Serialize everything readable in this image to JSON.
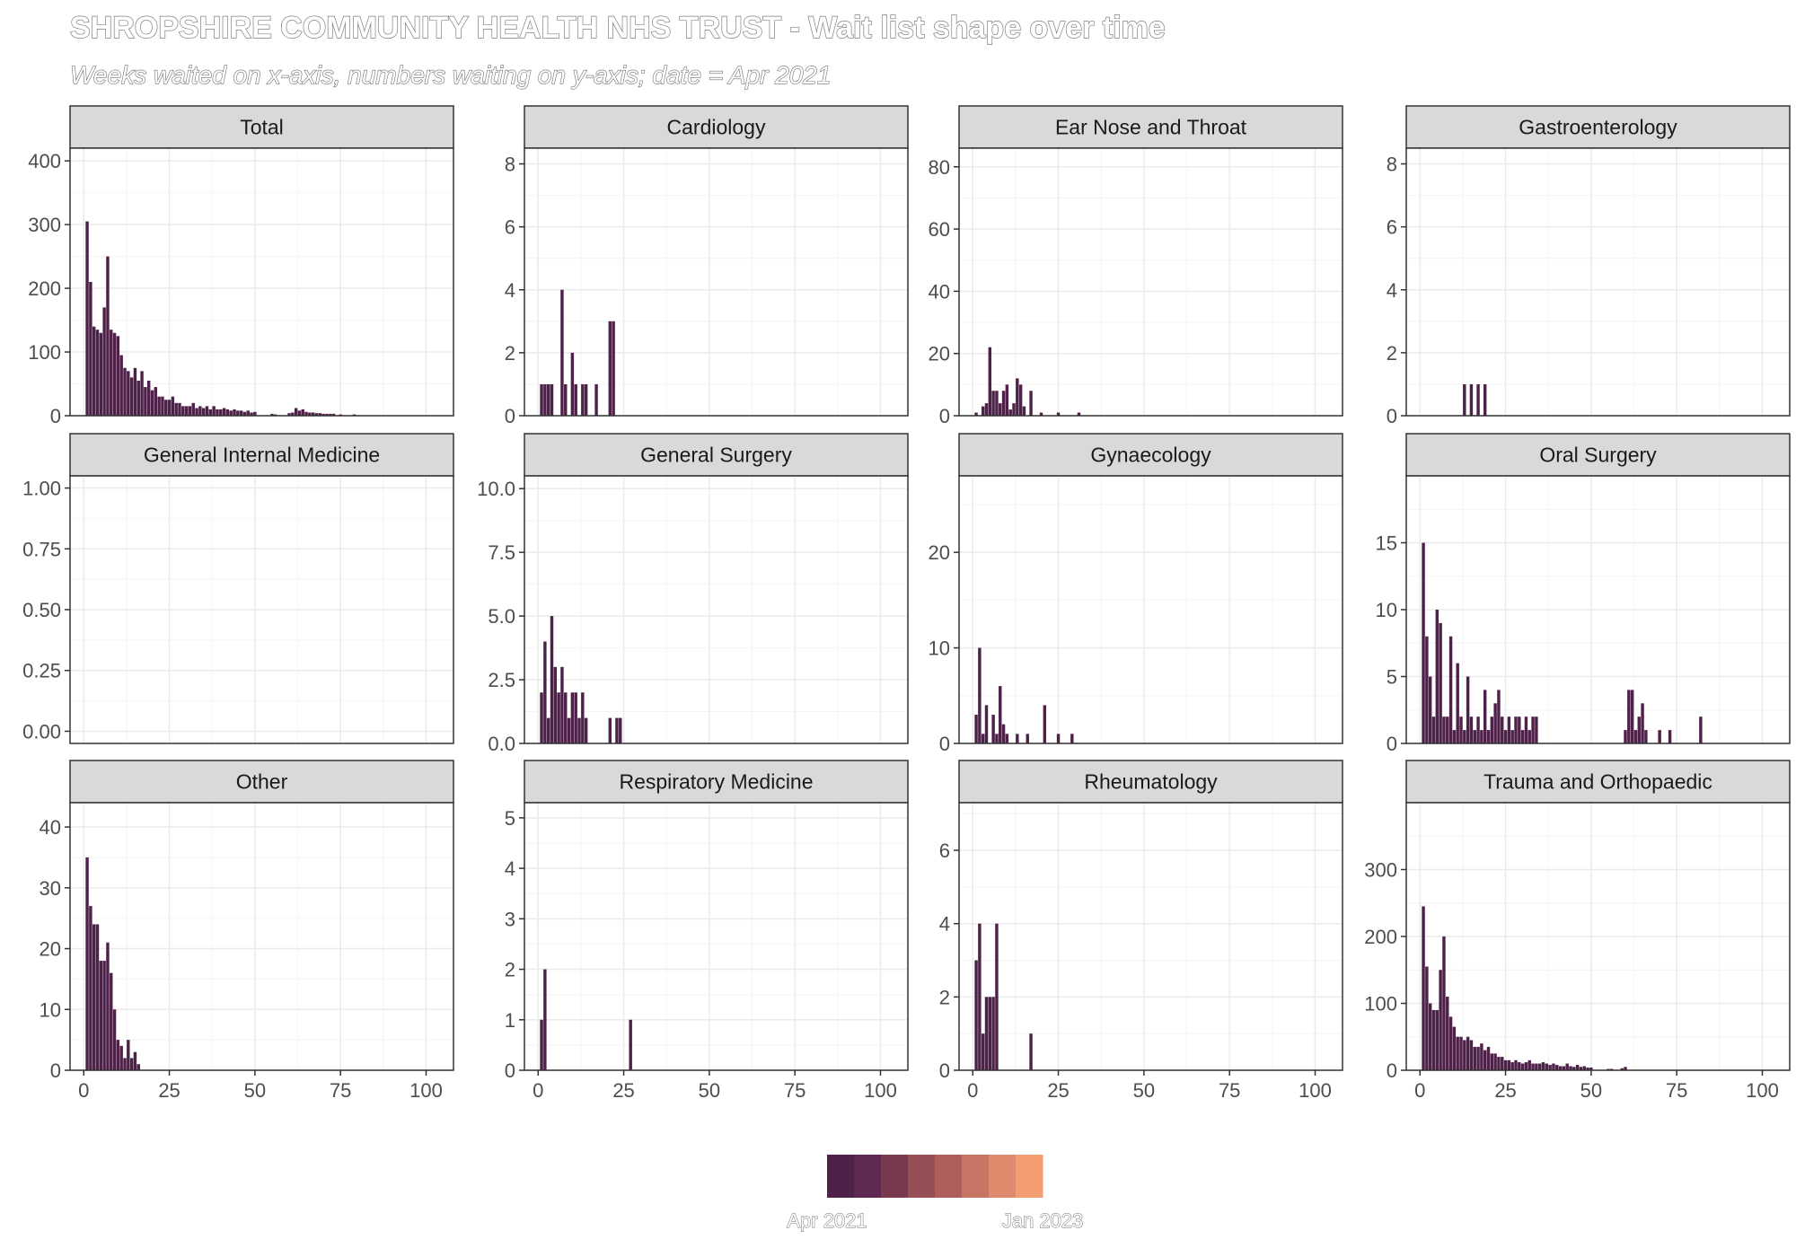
{
  "title": "SHROPSHIRE COMMUNITY HEALTH NHS TRUST - Wait list shape over time",
  "subtitle": "Weeks waited on x-axis, numbers waiting on y-axis; date = Apr 2021",
  "colors": {
    "bar": "#4e2149",
    "strip_fill": "#d9d9d9",
    "panel_border": "#333333",
    "grid_major": "#ebebeb",
    "grid_minor": "#f4f4f4",
    "legend_ramp": [
      "#4e2149",
      "#5e2a52",
      "#79394f",
      "#964f55",
      "#ae5f5c",
      "#c77565",
      "#dd8b6c",
      "#f29e72"
    ]
  },
  "legend": {
    "labels": [
      "Apr 2021",
      "Jan 2023"
    ],
    "placement": "bottom"
  },
  "chart_data": [
    {
      "type": "bar",
      "title": "Total",
      "ylim": [
        0,
        420
      ],
      "yticks": [
        0,
        100,
        200,
        300,
        400
      ],
      "yticklabels": [
        "0",
        "100",
        "200",
        "300",
        "400"
      ],
      "xlim": [
        -4,
        108
      ],
      "xticks": [
        0,
        25,
        50,
        75,
        100
      ],
      "xticklabels": [
        "0",
        "25",
        "50",
        "75",
        "100"
      ],
      "show_x_labels": false,
      "grid": true,
      "x": [
        1,
        2,
        3,
        4,
        5,
        6,
        7,
        8,
        9,
        10,
        11,
        12,
        13,
        14,
        15,
        16,
        17,
        18,
        19,
        20,
        21,
        22,
        23,
        24,
        25,
        26,
        27,
        28,
        29,
        30,
        31,
        32,
        33,
        34,
        35,
        36,
        37,
        38,
        39,
        40,
        41,
        42,
        43,
        44,
        45,
        46,
        47,
        48,
        49,
        50,
        55,
        56,
        60,
        61,
        62,
        63,
        64,
        65,
        66,
        67,
        68,
        69,
        70,
        71,
        72,
        73,
        75,
        79
      ],
      "values": [
        305,
        210,
        140,
        135,
        130,
        170,
        250,
        135,
        130,
        125,
        95,
        75,
        70,
        60,
        75,
        55,
        70,
        45,
        55,
        40,
        45,
        30,
        30,
        25,
        25,
        30,
        20,
        20,
        15,
        15,
        15,
        20,
        12,
        15,
        12,
        15,
        10,
        15,
        10,
        10,
        12,
        10,
        8,
        10,
        8,
        8,
        6,
        8,
        5,
        6,
        3,
        2,
        4,
        5,
        12,
        8,
        10,
        6,
        5,
        5,
        4,
        4,
        3,
        3,
        3,
        3,
        2,
        2
      ]
    },
    {
      "type": "bar",
      "title": "Cardiology",
      "ylim": [
        0,
        8.5
      ],
      "yticks": [
        0,
        2,
        4,
        6,
        8
      ],
      "yticklabels": [
        "0",
        "2",
        "4",
        "6",
        "8"
      ],
      "xlim": [
        -4,
        108
      ],
      "xticks": [
        0,
        25,
        50,
        75,
        100
      ],
      "xticklabels": [
        "0",
        "25",
        "50",
        "75",
        "100"
      ],
      "show_x_labels": false,
      "grid": true,
      "x": [
        1,
        2,
        3,
        4,
        7,
        8,
        10,
        11,
        13,
        14,
        17,
        21,
        22
      ],
      "values": [
        1,
        1,
        1,
        1,
        4,
        1,
        2,
        1,
        1,
        1,
        1,
        3,
        3
      ]
    },
    {
      "type": "bar",
      "title": "Ear Nose and Throat",
      "ylim": [
        0,
        86
      ],
      "yticks": [
        0,
        20,
        40,
        60,
        80
      ],
      "yticklabels": [
        "0",
        "20",
        "40",
        "60",
        "80"
      ],
      "xlim": [
        -4,
        108
      ],
      "xticks": [
        0,
        25,
        50,
        75,
        100
      ],
      "xticklabels": [
        "0",
        "25",
        "50",
        "75",
        "100"
      ],
      "show_x_labels": false,
      "grid": true,
      "x": [
        1,
        3,
        4,
        5,
        6,
        7,
        8,
        9,
        10,
        11,
        12,
        13,
        14,
        15,
        17,
        20,
        25,
        31
      ],
      "values": [
        1,
        3,
        4,
        22,
        8,
        8,
        4,
        8,
        10,
        2,
        4,
        12,
        10,
        3,
        8,
        1,
        1,
        1
      ]
    },
    {
      "type": "bar",
      "title": "Gastroenterology",
      "ylim": [
        0,
        8.5
      ],
      "yticks": [
        0,
        2,
        4,
        6,
        8
      ],
      "yticklabels": [
        "0",
        "2",
        "4",
        "6",
        "8"
      ],
      "xlim": [
        -4,
        108
      ],
      "xticks": [
        0,
        25,
        50,
        75,
        100
      ],
      "xticklabels": [
        "0",
        "25",
        "50",
        "75",
        "100"
      ],
      "show_x_labels": false,
      "grid": true,
      "x": [
        13,
        15,
        17,
        19
      ],
      "values": [
        1,
        1,
        1,
        1
      ]
    },
    {
      "type": "bar",
      "title": "General Internal Medicine",
      "ylim": [
        -0.05,
        1.05
      ],
      "yticks": [
        0,
        0.25,
        0.5,
        0.75,
        1
      ],
      "yticklabels": [
        "0.00",
        "0.25",
        "0.50",
        "0.75",
        "1.00"
      ],
      "xlim": [
        -4,
        108
      ],
      "xticks": [
        0,
        25,
        50,
        75,
        100
      ],
      "xticklabels": [
        "0",
        "25",
        "50",
        "75",
        "100"
      ],
      "show_x_labels": false,
      "grid": true,
      "x": [],
      "values": []
    },
    {
      "type": "bar",
      "title": "General Surgery",
      "ylim": [
        0,
        10.5
      ],
      "yticks": [
        0,
        2.5,
        5,
        7.5,
        10
      ],
      "yticklabels": [
        "0.0",
        "2.5",
        "5.0",
        "7.5",
        "10.0"
      ],
      "xlim": [
        -4,
        108
      ],
      "xticks": [
        0,
        25,
        50,
        75,
        100
      ],
      "xticklabels": [
        "0",
        "25",
        "50",
        "75",
        "100"
      ],
      "show_x_labels": false,
      "grid": true,
      "x": [
        1,
        2,
        3,
        4,
        5,
        6,
        7,
        8,
        9,
        10,
        11,
        12,
        13,
        14,
        21,
        23,
        24
      ],
      "values": [
        2,
        4,
        1,
        5,
        3,
        2,
        3,
        2,
        1,
        2,
        2,
        1,
        2,
        1,
        1,
        1,
        1
      ]
    },
    {
      "type": "bar",
      "title": "Gynaecology",
      "ylim": [
        0,
        28
      ],
      "yticks": [
        0,
        10,
        20
      ],
      "yticklabels": [
        "0",
        "10",
        "20"
      ],
      "xlim": [
        -4,
        108
      ],
      "xticks": [
        0,
        25,
        50,
        75,
        100
      ],
      "xticklabels": [
        "0",
        "25",
        "50",
        "75",
        "100"
      ],
      "show_x_labels": false,
      "grid": true,
      "x": [
        1,
        2,
        3,
        4,
        6,
        7,
        8,
        9,
        10,
        13,
        16,
        21,
        25,
        29
      ],
      "values": [
        3,
        10,
        1,
        4,
        3,
        1,
        6,
        2,
        1,
        1,
        1,
        4,
        1,
        1
      ]
    },
    {
      "type": "bar",
      "title": "Oral Surgery",
      "ylim": [
        0,
        20
      ],
      "yticks": [
        0,
        5,
        10,
        15
      ],
      "yticklabels": [
        "0",
        "5",
        "10",
        "15"
      ],
      "xlim": [
        -4,
        108
      ],
      "xticks": [
        0,
        25,
        50,
        75,
        100
      ],
      "xticklabels": [
        "0",
        "25",
        "50",
        "75",
        "100"
      ],
      "show_x_labels": false,
      "grid": true,
      "x": [
        1,
        2,
        3,
        4,
        5,
        6,
        7,
        8,
        9,
        10,
        11,
        12,
        13,
        14,
        15,
        16,
        17,
        18,
        19,
        20,
        21,
        22,
        23,
        24,
        25,
        26,
        27,
        28,
        29,
        30,
        31,
        32,
        33,
        34,
        60,
        61,
        62,
        63,
        64,
        65,
        66,
        70,
        73,
        82
      ],
      "values": [
        15,
        8,
        5,
        2,
        10,
        9,
        2,
        2,
        8,
        1,
        6,
        2,
        1,
        5,
        2,
        1,
        2,
        1,
        4,
        1,
        2,
        3,
        4,
        2,
        1,
        2,
        1,
        2,
        2,
        1,
        2,
        1,
        2,
        2,
        1,
        4,
        4,
        1,
        2,
        3,
        1,
        1,
        1,
        2
      ]
    },
    {
      "type": "bar",
      "title": "Other",
      "ylim": [
        0,
        44
      ],
      "yticks": [
        0,
        10,
        20,
        30,
        40
      ],
      "yticklabels": [
        "0",
        "10",
        "20",
        "30",
        "40"
      ],
      "xlim": [
        -4,
        108
      ],
      "xticks": [
        0,
        25,
        50,
        75,
        100
      ],
      "xticklabels": [
        "0",
        "25",
        "50",
        "75",
        "100"
      ],
      "show_x_labels": true,
      "grid": true,
      "x": [
        1,
        2,
        3,
        4,
        5,
        6,
        7,
        8,
        9,
        10,
        11,
        12,
        13,
        14,
        15,
        16
      ],
      "values": [
        35,
        27,
        24,
        24,
        18,
        18,
        21,
        16,
        10,
        5,
        4,
        2,
        5,
        2,
        3,
        1
      ]
    },
    {
      "type": "bar",
      "title": "Respiratory Medicine",
      "ylim": [
        0,
        5.3
      ],
      "yticks": [
        0,
        1,
        2,
        3,
        4,
        5
      ],
      "yticklabels": [
        "0",
        "1",
        "2",
        "3",
        "4",
        "5"
      ],
      "xlim": [
        -4,
        108
      ],
      "xticks": [
        0,
        25,
        50,
        75,
        100
      ],
      "xticklabels": [
        "0",
        "25",
        "50",
        "75",
        "100"
      ],
      "show_x_labels": true,
      "grid": true,
      "x": [
        1,
        2,
        27
      ],
      "values": [
        1,
        2,
        1
      ]
    },
    {
      "type": "bar",
      "title": "Rheumatology",
      "ylim": [
        0,
        7.3
      ],
      "yticks": [
        0,
        2,
        4,
        6
      ],
      "yticklabels": [
        "0",
        "2",
        "4",
        "6"
      ],
      "xlim": [
        -4,
        108
      ],
      "xticks": [
        0,
        25,
        50,
        75,
        100
      ],
      "xticklabels": [
        "0",
        "25",
        "50",
        "75",
        "100"
      ],
      "show_x_labels": true,
      "grid": true,
      "x": [
        1,
        2,
        3,
        4,
        5,
        6,
        7,
        17
      ],
      "values": [
        3,
        4,
        1,
        2,
        2,
        2,
        4,
        1
      ]
    },
    {
      "type": "bar",
      "title": "Trauma and Orthopaedic",
      "ylim": [
        0,
        400
      ],
      "yticks": [
        0,
        100,
        200,
        300
      ],
      "yticklabels": [
        "0",
        "100",
        "200",
        "300"
      ],
      "xlim": [
        -4,
        108
      ],
      "xticks": [
        0,
        25,
        50,
        75,
        100
      ],
      "xticklabels": [
        "0",
        "25",
        "50",
        "75",
        "100"
      ],
      "show_x_labels": true,
      "grid": true,
      "x": [
        1,
        2,
        3,
        4,
        5,
        6,
        7,
        8,
        9,
        10,
        11,
        12,
        13,
        14,
        15,
        16,
        17,
        18,
        19,
        20,
        21,
        22,
        23,
        24,
        25,
        26,
        27,
        28,
        29,
        30,
        31,
        32,
        33,
        34,
        35,
        36,
        37,
        38,
        39,
        40,
        41,
        42,
        43,
        44,
        45,
        46,
        47,
        48,
        49,
        50,
        55,
        56,
        59,
        60
      ],
      "values": [
        245,
        155,
        100,
        90,
        90,
        150,
        200,
        110,
        80,
        65,
        50,
        50,
        45,
        50,
        45,
        35,
        35,
        40,
        30,
        35,
        25,
        25,
        20,
        20,
        15,
        15,
        12,
        15,
        12,
        10,
        12,
        15,
        10,
        10,
        10,
        12,
        10,
        8,
        10,
        8,
        6,
        6,
        10,
        6,
        5,
        8,
        5,
        6,
        4,
        4,
        2,
        2,
        3,
        5
      ]
    }
  ]
}
